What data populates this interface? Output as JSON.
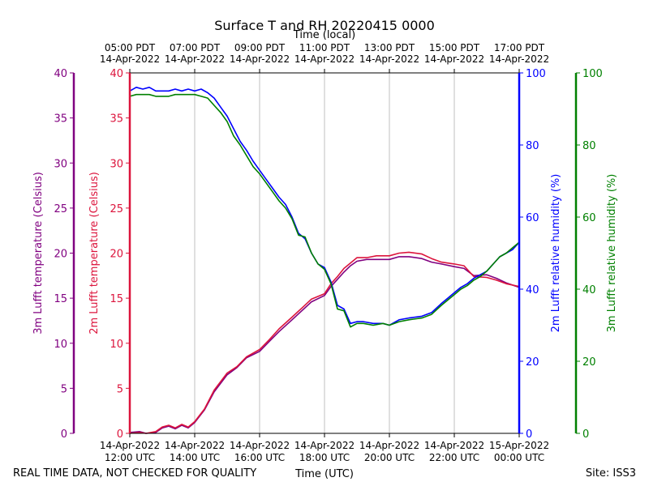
{
  "chart_data": {
    "type": "line",
    "title": "Surface T and RH 20220415 0000",
    "top_axis_label": "Time (local)",
    "top_ticks": [
      {
        "time": "05:00 PDT",
        "date": "14-Apr-2022"
      },
      {
        "time": "07:00 PDT",
        "date": "14-Apr-2022"
      },
      {
        "time": "09:00 PDT",
        "date": "14-Apr-2022"
      },
      {
        "time": "11:00 PDT",
        "date": "14-Apr-2022"
      },
      {
        "time": "13:00 PDT",
        "date": "14-Apr-2022"
      },
      {
        "time": "15:00 PDT",
        "date": "14-Apr-2022"
      },
      {
        "time": "17:00 PDT",
        "date": "14-Apr-2022"
      }
    ],
    "xlabel": "Time (UTC)",
    "bottom_ticks": [
      {
        "date": "14-Apr-2022",
        "time": "12:00 UTC"
      },
      {
        "date": "14-Apr-2022",
        "time": "14:00 UTC"
      },
      {
        "date": "14-Apr-2022",
        "time": "16:00 UTC"
      },
      {
        "date": "14-Apr-2022",
        "time": "18:00 UTC"
      },
      {
        "date": "14-Apr-2022",
        "time": "20:00 UTC"
      },
      {
        "date": "14-Apr-2022",
        "time": "22:00 UTC"
      },
      {
        "date": "15-Apr-2022",
        "time": "00:00 UTC"
      }
    ],
    "xlim": [
      12,
      24
    ],
    "grid_x": [
      14,
      16,
      18,
      20,
      22
    ],
    "axes": {
      "temp3m": {
        "label": "3m Lufft temperature (Celsius)",
        "color": "#800080",
        "ylim": [
          0,
          40
        ],
        "ticks": [
          "0",
          "5",
          "10",
          "15",
          "20",
          "25",
          "30",
          "35",
          "40"
        ]
      },
      "temp2m": {
        "label": "2m Lufft temperature (Celsius)",
        "color": "#dc143c",
        "ylim": [
          0,
          40
        ],
        "ticks": [
          "0",
          "5",
          "10",
          "15",
          "20",
          "25",
          "30",
          "35",
          "40"
        ]
      },
      "rh2m": {
        "label": "2m Lufft relative humidity (%)",
        "color": "#0000ff",
        "ylim": [
          0,
          100
        ],
        "ticks": [
          "0",
          "20",
          "40",
          "60",
          "80",
          "100"
        ]
      },
      "rh3m": {
        "label": "3m Lufft relative humidity (%)",
        "color": "#008000",
        "ylim": [
          0,
          100
        ],
        "ticks": [
          "0",
          "20",
          "40",
          "60",
          "80",
          "100"
        ]
      }
    },
    "series": [
      {
        "name": "3m Lufft temperature",
        "axis": "temp3m",
        "color": "#800080",
        "x": [
          12.0,
          12.3,
          12.5,
          12.8,
          13.0,
          13.2,
          13.4,
          13.6,
          13.8,
          14.0,
          14.3,
          14.6,
          15.0,
          15.3,
          15.6,
          16.0,
          16.3,
          16.6,
          17.0,
          17.3,
          17.6,
          18.0,
          18.2,
          18.4,
          18.6,
          18.8,
          19.0,
          19.3,
          19.6,
          20.0,
          20.3,
          20.6,
          21.0,
          21.3,
          21.6,
          22.0,
          22.3,
          22.6,
          23.0,
          23.3,
          23.6,
          24.0
        ],
        "y": [
          0.1,
          0.2,
          0.0,
          0.1,
          0.6,
          0.8,
          0.5,
          0.9,
          0.6,
          1.2,
          2.6,
          4.6,
          6.5,
          7.3,
          8.4,
          9.1,
          10.2,
          11.3,
          12.6,
          13.6,
          14.6,
          15.3,
          16.3,
          17.1,
          17.9,
          18.6,
          19.1,
          19.3,
          19.3,
          19.3,
          19.6,
          19.6,
          19.4,
          19.0,
          18.8,
          18.5,
          18.3,
          17.5,
          17.6,
          17.2,
          16.7,
          16.2
        ]
      },
      {
        "name": "2m Lufft temperature",
        "axis": "temp2m",
        "color": "#dc143c",
        "x": [
          12.0,
          12.3,
          12.5,
          12.8,
          13.0,
          13.2,
          13.4,
          13.6,
          13.8,
          14.0,
          14.3,
          14.6,
          15.0,
          15.3,
          15.6,
          16.0,
          16.3,
          16.6,
          17.0,
          17.3,
          17.6,
          18.0,
          18.2,
          18.4,
          18.6,
          18.8,
          19.0,
          19.3,
          19.6,
          20.0,
          20.3,
          20.6,
          21.0,
          21.3,
          21.6,
          22.0,
          22.3,
          22.6,
          23.0,
          23.3,
          23.6,
          24.0
        ],
        "y": [
          0.0,
          0.1,
          0.0,
          0.2,
          0.7,
          0.9,
          0.6,
          1.0,
          0.7,
          1.3,
          2.7,
          4.8,
          6.7,
          7.4,
          8.5,
          9.3,
          10.4,
          11.6,
          12.9,
          13.9,
          14.9,
          15.5,
          16.6,
          17.4,
          18.3,
          18.9,
          19.5,
          19.5,
          19.7,
          19.7,
          20.0,
          20.1,
          19.9,
          19.4,
          19.0,
          18.8,
          18.6,
          17.4,
          17.3,
          17.0,
          16.6,
          16.3
        ]
      },
      {
        "name": "2m Lufft relative humidity",
        "axis": "rh2m",
        "color": "#0000ff",
        "x": [
          12.0,
          12.2,
          12.4,
          12.6,
          12.8,
          13.0,
          13.2,
          13.4,
          13.6,
          13.8,
          14.0,
          14.2,
          14.4,
          14.6,
          14.8,
          15.0,
          15.2,
          15.4,
          15.6,
          15.8,
          16.0,
          16.2,
          16.4,
          16.6,
          16.8,
          17.0,
          17.2,
          17.4,
          17.6,
          17.8,
          18.0,
          18.2,
          18.4,
          18.6,
          18.8,
          19.0,
          19.2,
          19.5,
          19.8,
          20.0,
          20.3,
          20.6,
          21.0,
          21.3,
          21.6,
          21.8,
          22.0,
          22.2,
          22.4,
          22.6,
          22.8,
          23.0,
          23.2,
          23.4,
          23.6,
          23.8,
          24.0
        ],
        "y": [
          95.0,
          96.0,
          95.5,
          96.0,
          95.0,
          95.0,
          95.0,
          95.5,
          95.0,
          95.5,
          95.0,
          95.5,
          94.5,
          93.0,
          90.5,
          88.0,
          84.5,
          81.0,
          78.5,
          75.5,
          73.0,
          70.5,
          68.0,
          65.5,
          63.5,
          60.0,
          55.5,
          54.0,
          50.0,
          47.0,
          46.0,
          42.0,
          35.5,
          34.5,
          30.5,
          31.0,
          31.0,
          30.5,
          30.5,
          30.0,
          31.5,
          32.0,
          32.5,
          33.5,
          36.0,
          37.5,
          39.0,
          40.5,
          41.5,
          43.0,
          44.0,
          45.0,
          47.0,
          49.0,
          50.0,
          51.0,
          53.0
        ]
      },
      {
        "name": "3m Lufft relative humidity",
        "axis": "rh3m",
        "color": "#008000",
        "x": [
          12.0,
          12.2,
          12.4,
          12.6,
          12.8,
          13.0,
          13.2,
          13.4,
          13.6,
          13.8,
          14.0,
          14.2,
          14.4,
          14.6,
          14.8,
          15.0,
          15.2,
          15.4,
          15.6,
          15.8,
          16.0,
          16.2,
          16.4,
          16.6,
          16.8,
          17.0,
          17.2,
          17.4,
          17.6,
          17.8,
          18.0,
          18.2,
          18.4,
          18.6,
          18.8,
          19.0,
          19.2,
          19.5,
          19.8,
          20.0,
          20.3,
          20.6,
          21.0,
          21.3,
          21.6,
          21.8,
          22.0,
          22.2,
          22.4,
          22.6,
          22.8,
          23.0,
          23.2,
          23.4,
          23.6,
          23.8,
          24.0
        ],
        "y": [
          93.5,
          94.0,
          94.0,
          94.0,
          93.5,
          93.5,
          93.5,
          94.0,
          94.0,
          94.0,
          94.0,
          93.5,
          93.0,
          91.0,
          89.0,
          86.5,
          82.5,
          80.0,
          77.0,
          74.0,
          72.0,
          69.5,
          67.0,
          64.5,
          62.5,
          59.5,
          55.0,
          54.5,
          50.0,
          47.0,
          45.5,
          41.5,
          34.5,
          34.0,
          29.5,
          30.5,
          30.5,
          30.0,
          30.5,
          30.0,
          31.0,
          31.5,
          32.0,
          33.0,
          35.5,
          37.0,
          38.5,
          40.0,
          41.0,
          42.5,
          43.5,
          45.0,
          47.0,
          49.0,
          50.0,
          51.5,
          53.0
        ]
      }
    ]
  },
  "footer": {
    "left_note": "REAL TIME DATA, NOT CHECKED FOR QUALITY",
    "right_note": "Site: ISS3"
  }
}
